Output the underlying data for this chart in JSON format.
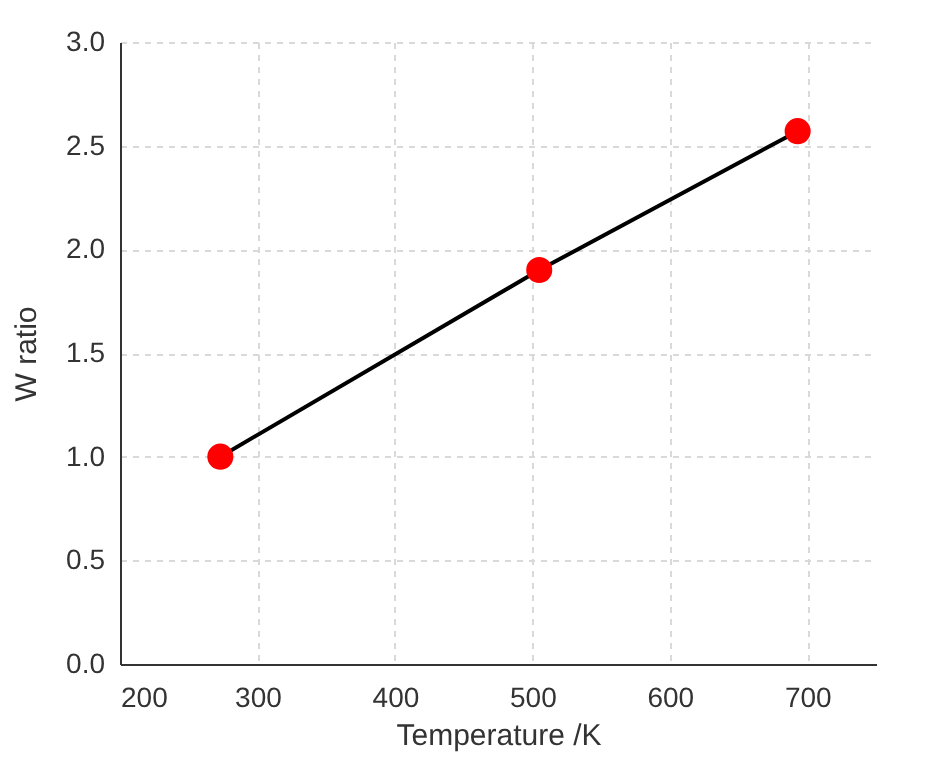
{
  "chart_data": {
    "type": "scatter",
    "xlabel": "Temperature /K",
    "ylabel": "W ratio",
    "x": [
      273,
      505,
      693
    ],
    "series": [
      {
        "type": "line",
        "marker": "none",
        "color": "#000000",
        "values": [
          1.0,
          1.9,
          2.57
        ]
      },
      {
        "marker": "circle",
        "color": "#ff0000",
        "values": [
          1.0,
          1.9,
          2.57
        ]
      }
    ],
    "xlim": [
      200,
      750
    ],
    "xticks": [
      200,
      300,
      400,
      500,
      600,
      700
    ],
    "ylim": [
      0,
      3
    ],
    "yticks": [
      {
        "value": 0,
        "label": "0.0"
      },
      0.5,
      {
        "value": 1,
        "label": "1.0"
      },
      1.5,
      {
        "value": 2,
        "label": "2.0"
      },
      2.5,
      {
        "value": 3,
        "label": "3.0"
      }
    ],
    "grid": true,
    "line_style": "solid"
  }
}
